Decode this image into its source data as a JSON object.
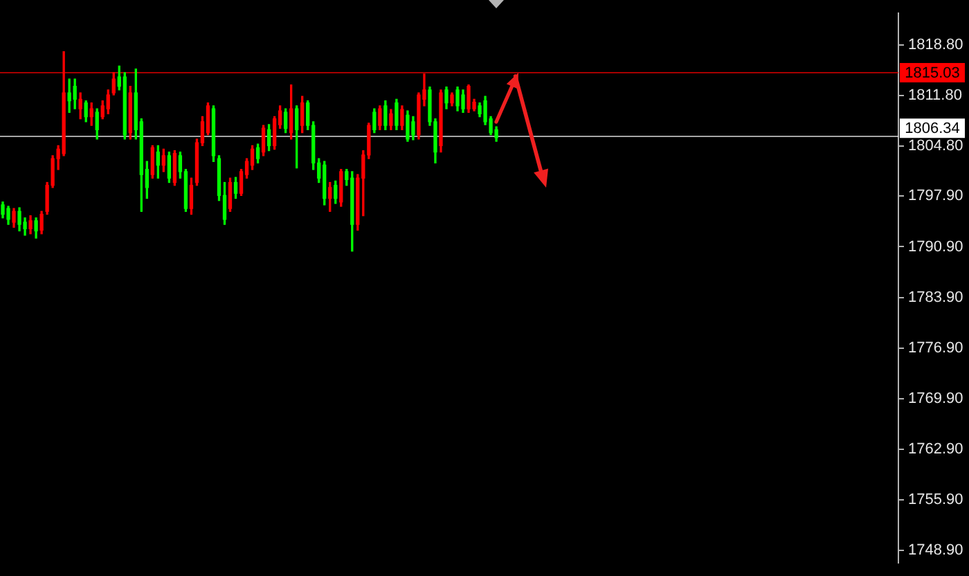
{
  "chart_data": {
    "type": "candlestick",
    "categories": [
      null,
      null,
      null,
      null,
      null,
      null,
      null,
      null,
      null,
      null,
      null,
      null,
      null,
      null,
      null,
      null,
      null,
      null,
      null,
      null,
      null,
      null,
      null,
      null,
      null,
      null,
      null,
      null,
      null,
      null,
      null,
      null,
      null,
      null,
      null,
      null,
      null,
      null,
      null,
      null,
      null,
      null,
      null,
      null,
      null,
      null,
      null,
      null,
      null,
      null,
      null,
      null,
      null,
      null,
      null,
      null,
      null,
      null,
      null,
      null,
      null,
      null,
      null,
      null,
      null,
      null,
      null,
      null,
      null,
      null,
      null,
      null,
      null,
      null,
      null,
      null,
      null,
      null,
      null,
      null,
      null,
      null,
      null,
      null,
      null,
      null,
      null,
      null,
      null,
      null,
      null,
      null,
      null,
      null,
      null,
      null,
      null,
      null,
      null,
      null,
      null,
      null,
      null,
      null,
      null,
      null,
      null,
      null,
      null,
      null,
      null,
      null,
      null,
      null,
      null,
      null,
      null,
      null,
      null,
      null,
      null,
      null,
      null,
      null,
      null,
      null,
      null,
      null,
      null,
      null,
      null,
      null,
      null,
      null,
      null,
      null,
      null,
      null,
      null,
      null,
      null,
      null,
      null,
      null,
      null,
      null,
      null,
      null,
      null,
      null,
      null,
      null,
      null,
      null,
      null,
      null,
      null,
      null,
      null,
      null,
      null,
      null
    ],
    "ohlc": [
      [
        1796.7,
        1797.1,
        1794.9,
        1795.4
      ],
      [
        1796.2,
        1796.5,
        1794.0,
        1794.7
      ],
      [
        1794.3,
        1796.2,
        1793.6,
        1795.8
      ],
      [
        1795.8,
        1796.3,
        1793.1,
        1794.0
      ],
      [
        1794.3,
        1794.9,
        1792.5,
        1793.4
      ],
      [
        1793.4,
        1795.2,
        1792.7,
        1794.5
      ],
      [
        1794.5,
        1794.9,
        1792.1,
        1793.1
      ],
      [
        1793.2,
        1795.8,
        1792.7,
        1795.4
      ],
      [
        1795.8,
        1799.8,
        1795.4,
        1799.4
      ],
      [
        1799.4,
        1803.5,
        1799.1,
        1803.1
      ],
      [
        1803.1,
        1804.9,
        1801.6,
        1804.4
      ],
      [
        1803.8,
        1817.9,
        1803.5,
        1812.2
      ],
      [
        1812.2,
        1814.1,
        1809.5,
        1811.1
      ],
      [
        1813.1,
        1814.1,
        1810.0,
        1811.3
      ],
      [
        1810.0,
        1812.2,
        1808.6,
        1811.3
      ],
      [
        1810.8,
        1811.1,
        1808.2,
        1808.9
      ],
      [
        1808.9,
        1810.8,
        1807.7,
        1810.0
      ],
      [
        1809.5,
        1810.0,
        1805.8,
        1807.1
      ],
      [
        1808.9,
        1811.1,
        1808.6,
        1810.4
      ],
      [
        1810.0,
        1812.6,
        1809.3,
        1811.9
      ],
      [
        1812.2,
        1815.0,
        1811.9,
        1814.1
      ],
      [
        1814.4,
        1815.9,
        1812.6,
        1813.1
      ],
      [
        1814.4,
        1815.0,
        1805.8,
        1806.4
      ],
      [
        1806.7,
        1813.1,
        1805.8,
        1812.2
      ],
      [
        1812.2,
        1815.5,
        1805.8,
        1807.1
      ],
      [
        1808.2,
        1808.6,
        1795.8,
        1800.9
      ],
      [
        1801.6,
        1802.7,
        1797.6,
        1799.1
      ],
      [
        1800.9,
        1804.9,
        1800.4,
        1804.6
      ],
      [
        1804.0,
        1804.9,
        1800.4,
        1802.2
      ],
      [
        1802.2,
        1804.4,
        1801.3,
        1803.5
      ],
      [
        1803.5,
        1804.0,
        1799.8,
        1800.4
      ],
      [
        1799.8,
        1804.2,
        1799.4,
        1803.8
      ],
      [
        1803.5,
        1804.0,
        1800.4,
        1801.3
      ],
      [
        1801.3,
        1801.6,
        1795.8,
        1796.2
      ],
      [
        1796.2,
        1800.4,
        1795.4,
        1799.4
      ],
      [
        1799.8,
        1805.8,
        1799.4,
        1805.3
      ],
      [
        1805.3,
        1808.9,
        1804.9,
        1808.2
      ],
      [
        1806.7,
        1810.8,
        1806.4,
        1810.4
      ],
      [
        1810.0,
        1810.4,
        1802.7,
        1803.5
      ],
      [
        1803.1,
        1803.5,
        1797.3,
        1798.0
      ],
      [
        1798.0,
        1799.8,
        1794.0,
        1794.7
      ],
      [
        1796.2,
        1800.4,
        1795.8,
        1799.8
      ],
      [
        1799.8,
        1800.5,
        1797.6,
        1798.3
      ],
      [
        1798.3,
        1801.6,
        1798.0,
        1801.3
      ],
      [
        1800.9,
        1803.1,
        1800.4,
        1802.7
      ],
      [
        1802.2,
        1804.9,
        1801.6,
        1804.4
      ],
      [
        1804.6,
        1805.1,
        1802.5,
        1803.1
      ],
      [
        1804.0,
        1807.7,
        1803.5,
        1807.3
      ],
      [
        1807.1,
        1807.8,
        1804.2,
        1804.9
      ],
      [
        1804.9,
        1808.9,
        1804.4,
        1808.6
      ],
      [
        1807.8,
        1810.4,
        1807.3,
        1809.7
      ],
      [
        1809.5,
        1810.0,
        1806.7,
        1807.3
      ],
      [
        1806.7,
        1813.3,
        1805.8,
        1810.0
      ],
      [
        1810.0,
        1810.4,
        1801.8,
        1807.1
      ],
      [
        1807.7,
        1811.7,
        1806.7,
        1810.8
      ],
      [
        1810.8,
        1811.1,
        1807.1,
        1807.7
      ],
      [
        1807.7,
        1808.2,
        1801.6,
        1802.5
      ],
      [
        1802.5,
        1803.1,
        1799.8,
        1800.4
      ],
      [
        1802.2,
        1802.7,
        1796.7,
        1797.6
      ],
      [
        1797.6,
        1799.8,
        1795.8,
        1799.1
      ],
      [
        1799.4,
        1800.0,
        1796.9,
        1797.6
      ],
      [
        1797.1,
        1801.6,
        1796.5,
        1801.3
      ],
      [
        1801.3,
        1801.6,
        1799.4,
        1800.2
      ],
      [
        1800.4,
        1801.3,
        1790.3,
        1794.0
      ],
      [
        1794.0,
        1800.9,
        1793.2,
        1800.4
      ],
      [
        1800.4,
        1804.2,
        1795.2,
        1803.6
      ],
      [
        1803.6,
        1808.0,
        1803.1,
        1807.7
      ],
      [
        1809.5,
        1810.0,
        1806.7,
        1807.1
      ],
      [
        1807.7,
        1810.4,
        1807.1,
        1810.0
      ],
      [
        1810.4,
        1811.1,
        1807.1,
        1807.7
      ],
      [
        1807.7,
        1809.9,
        1807.1,
        1809.3
      ],
      [
        1810.8,
        1811.3,
        1807.1,
        1807.7
      ],
      [
        1807.7,
        1810.4,
        1807.1,
        1809.9
      ],
      [
        1809.1,
        1809.7,
        1805.5,
        1805.8
      ],
      [
        1808.2,
        1808.9,
        1805.7,
        1806.4
      ],
      [
        1806.4,
        1812.2,
        1805.8,
        1811.9
      ],
      [
        1811.3,
        1814.8,
        1810.4,
        1812.6
      ],
      [
        1812.6,
        1813.0,
        1807.7,
        1808.2
      ],
      [
        1808.2,
        1808.6,
        1802.5,
        1804.0
      ],
      [
        1804.9,
        1812.6,
        1804.0,
        1812.2
      ],
      [
        1812.6,
        1813.0,
        1810.0,
        1810.8
      ],
      [
        1810.8,
        1812.2,
        1810.4,
        1811.9
      ],
      [
        1812.6,
        1813.0,
        1809.7,
        1810.4
      ],
      [
        1811.9,
        1812.6,
        1809.5,
        1810.0
      ],
      [
        1810.0,
        1813.3,
        1809.5,
        1813.1
      ],
      [
        1810.0,
        1811.3,
        1809.7,
        1810.9
      ],
      [
        1810.4,
        1810.8,
        1808.9,
        1809.3
      ],
      [
        1811.1,
        1811.7,
        1807.8,
        1808.2
      ],
      [
        1808.6,
        1808.9,
        1806.4,
        1806.7
      ],
      [
        1807.1,
        1807.5,
        1805.5,
        1806.0
      ],
      null,
      null,
      null,
      null,
      null,
      null,
      null,
      null,
      null,
      null,
      null,
      null,
      null,
      null,
      null,
      null,
      null,
      null,
      null,
      null,
      null,
      null,
      null,
      null,
      null,
      null,
      null,
      null,
      null,
      null,
      null,
      null,
      null,
      null,
      null,
      null,
      null,
      null,
      null,
      null,
      null,
      null,
      null,
      null,
      null,
      null,
      null,
      null,
      null,
      null,
      null,
      null,
      null,
      null,
      null,
      null,
      null,
      null,
      null,
      null,
      null,
      null,
      null,
      null,
      null,
      null,
      null,
      null,
      null,
      null,
      null,
      null
    ],
    "colors": [
      "#00ff00",
      "#00ff00",
      "#ff0000",
      "#00ff00",
      "#00ff00",
      "#ff0000",
      "#00ff00",
      "#ff0000",
      "#ff0000",
      "#ff0000",
      "#ff0000",
      "#ff0000",
      "#00ff00",
      "#00ff00",
      "#ff0000",
      "#00ff00",
      "#ff0000",
      "#00ff00",
      "#ff0000",
      "#ff0000",
      "#ff0000",
      "#00ff00",
      "#00ff00",
      "#ff0000",
      "#00ff00",
      "#00ff00",
      "#00ff00",
      "#ff0000",
      "#00ff00",
      "#ff0000",
      "#00ff00",
      "#ff0000",
      "#00ff00",
      "#00ff00",
      "#ff0000",
      "#ff0000",
      "#ff0000",
      "#ff0000",
      "#00ff00",
      "#00ff00",
      "#00ff00",
      "#ff0000",
      "#00ff00",
      "#ff0000",
      "#ff0000",
      "#ff0000",
      "#00ff00",
      "#ff0000",
      "#00ff00",
      "#ff0000",
      "#ff0000",
      "#00ff00",
      "#ff0000",
      "#00ff00",
      "#ff0000",
      "#00ff00",
      "#00ff00",
      "#00ff00",
      "#00ff00",
      "#ff0000",
      "#00ff00",
      "#ff0000",
      "#00ff00",
      "#00ff00",
      "#ff0000",
      "#ff0000",
      "#ff0000",
      "#00ff00",
      "#ff0000",
      "#00ff00",
      "#ff0000",
      "#00ff00",
      "#ff0000",
      "#00ff00",
      "#00ff00",
      "#ff0000",
      "#ff0000",
      "#00ff00",
      "#00ff00",
      "#ff0000",
      "#00ff00",
      "#ff0000",
      "#00ff00",
      "#00ff00",
      "#ff0000",
      "#ff0000",
      "#00ff00",
      "#00ff00",
      "#00ff00",
      "#00ff00",
      null,
      null,
      null,
      null,
      null,
      null,
      null,
      null,
      null,
      null,
      null,
      null,
      null,
      null,
      null,
      null,
      null,
      null,
      null,
      null,
      null,
      null,
      null,
      null,
      null,
      null,
      null,
      null,
      null,
      null,
      null,
      null,
      null,
      null,
      null,
      null,
      null,
      null,
      null,
      null,
      null,
      null,
      null,
      null,
      null,
      null,
      null,
      null,
      null,
      null,
      null,
      null,
      null,
      null,
      null,
      null,
      null,
      null,
      null,
      null,
      null,
      null,
      null,
      null,
      null,
      null,
      null,
      null,
      null,
      null,
      null,
      null
    ],
    "ylim": [
      1747.2,
      1823.2
    ],
    "yticks": [
      {
        "value": 1818.8,
        "label": "1818.80"
      },
      {
        "value": 1811.8,
        "label": "1811.80"
      },
      {
        "value": 1804.8,
        "label": "1804.80"
      },
      {
        "value": 1797.9,
        "label": "1797.90"
      },
      {
        "value": 1790.9,
        "label": "1790.90"
      },
      {
        "value": 1783.9,
        "label": "1783.90"
      },
      {
        "value": 1776.9,
        "label": "1776.90"
      },
      {
        "value": 1769.9,
        "label": "1769.90"
      },
      {
        "value": 1762.9,
        "label": "1762.90"
      },
      {
        "value": 1755.9,
        "label": "1755.90"
      },
      {
        "value": 1748.9,
        "label": "1748.90"
      }
    ],
    "ref_lines": [
      {
        "axis": "y",
        "value": 1815.03,
        "label": "1815.03",
        "color": "#ff0000"
      },
      {
        "axis": "y",
        "value": 1806.34,
        "label": "1806.34",
        "color": "#ffffff"
      }
    ],
    "tick_labels": "y"
  }
}
